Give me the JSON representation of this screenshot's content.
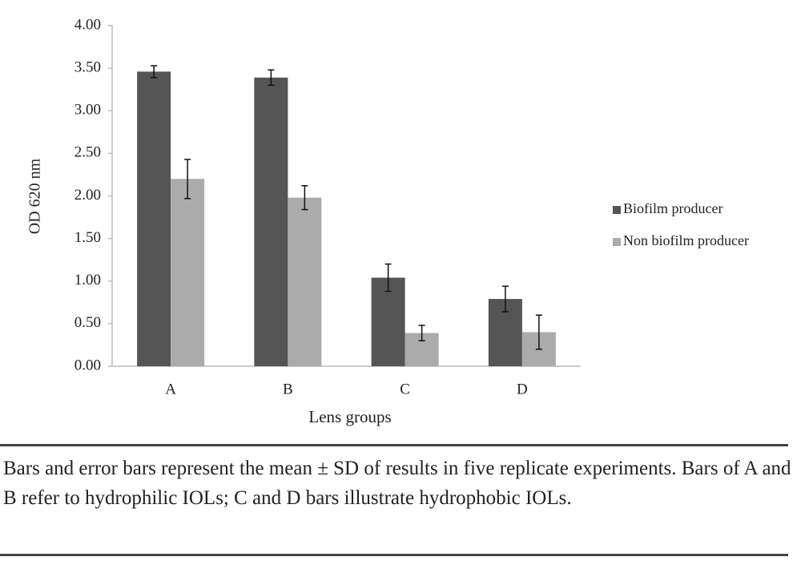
{
  "chart_data": {
    "type": "bar",
    "y_label": "OD 620 nm",
    "x_label": "Lens groups",
    "categories": [
      "A",
      "B",
      "C",
      "D"
    ],
    "series": [
      {
        "name": "Biofilm producer",
        "color": "#555555",
        "values": [
          3.46,
          3.39,
          1.04,
          0.79
        ],
        "errors": [
          0.07,
          0.09,
          0.16,
          0.15
        ]
      },
      {
        "name": "Non biofilm producer",
        "color": "#ababab",
        "values": [
          2.2,
          1.98,
          0.39,
          0.4
        ],
        "errors": [
          0.23,
          0.14,
          0.09,
          0.2
        ]
      }
    ],
    "ylim": [
      0,
      4
    ],
    "yticks": [
      {
        "value": 0,
        "label": "0.00"
      },
      {
        "value": 0.5,
        "label": "0.50"
      },
      {
        "value": 1,
        "label": "1.00"
      },
      {
        "value": 1.5,
        "label": "1.50"
      },
      {
        "value": 2,
        "label": "2.00"
      },
      {
        "value": 2.5,
        "label": "2.50"
      },
      {
        "value": 3,
        "label": "3.00"
      },
      {
        "value": 3.5,
        "label": "3.50"
      },
      {
        "value": 4,
        "label": "4.00"
      }
    ],
    "grid": false
  },
  "caption": "Bars and error bars represent the mean ± SD of results in five replicate experiments. Bars of A and B refer to hydrophilic IOLs; C and D bars illustrate hydrophobic IOLs."
}
